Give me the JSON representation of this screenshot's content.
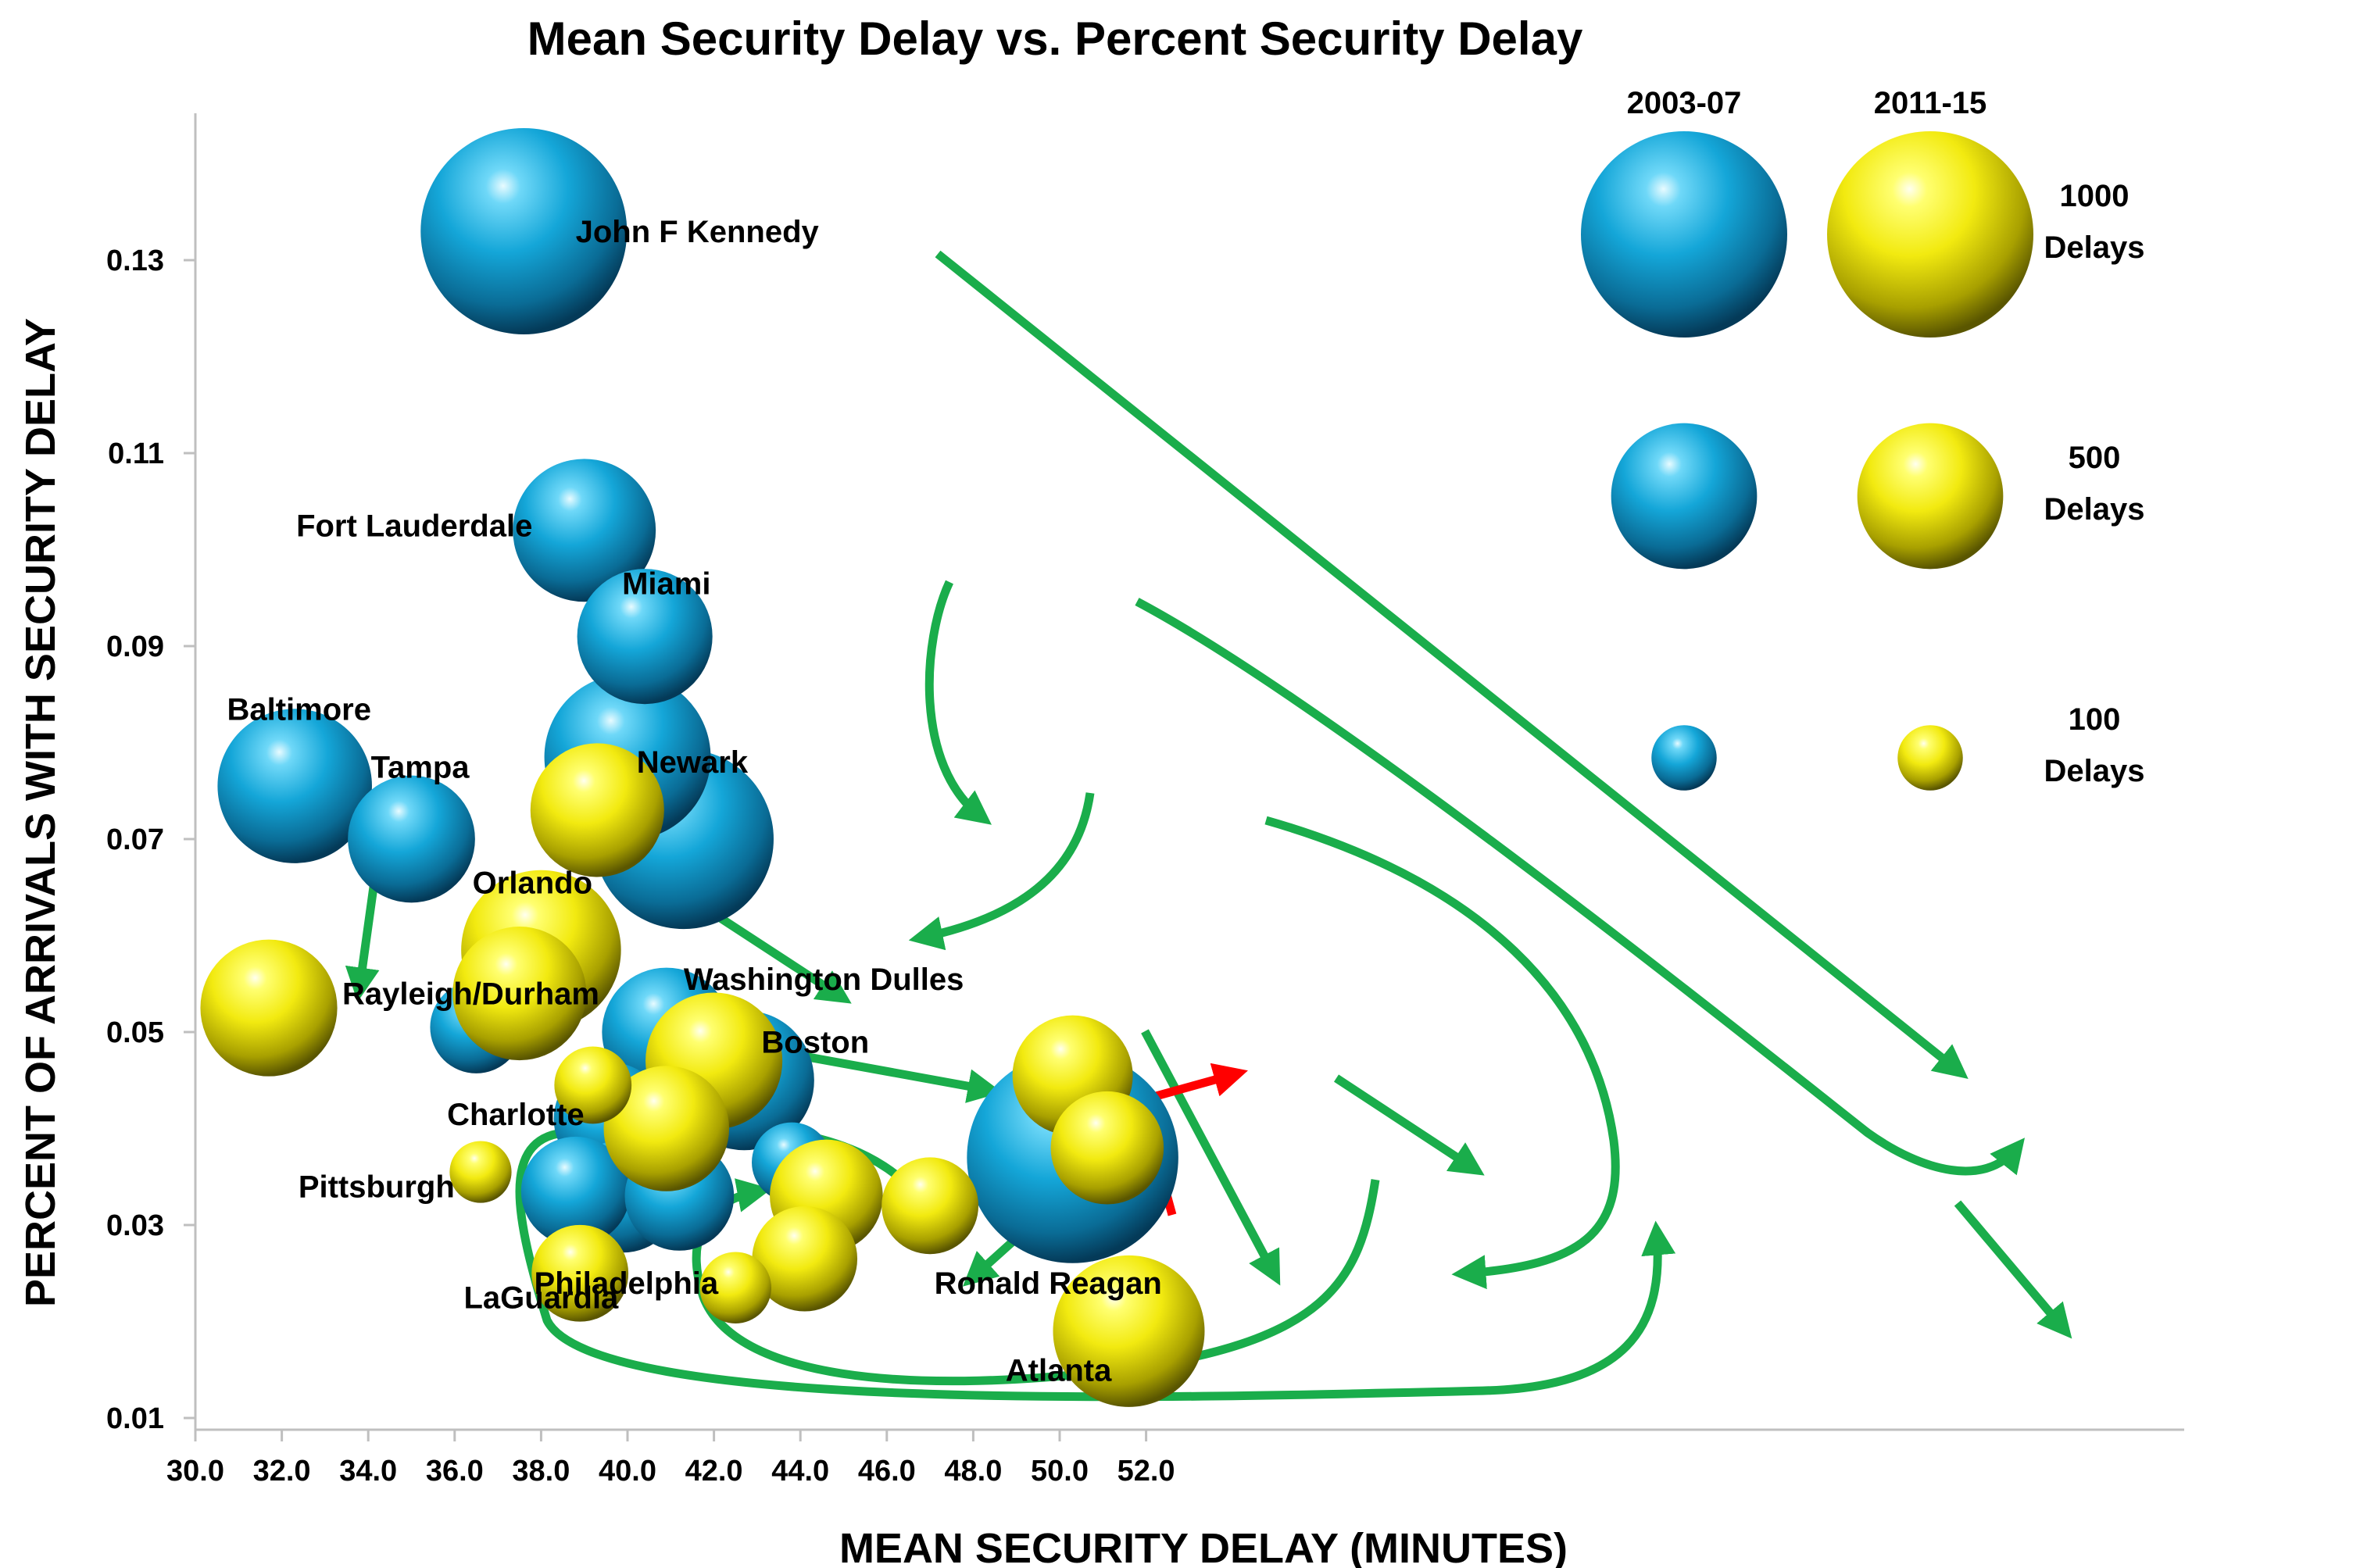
{
  "chart_data": {
    "type": "scatter",
    "subtype": "bubble",
    "title": "Mean Security Delay vs. Percent Security Delay",
    "xlabel": "MEAN SECURITY DELAY (MINUTES)",
    "ylabel": "PERCENT OF ARRIVALS WITH SECURITY DELAY",
    "xlim": [
      30,
      53
    ],
    "ylim": [
      0.01,
      0.145
    ],
    "x_ticks": [
      "30.0",
      "32.0",
      "34.0",
      "36.0",
      "38.0",
      "40.0",
      "42.0",
      "44.0",
      "46.0",
      "48.0",
      "50.0",
      "52.0"
    ],
    "x_tick_values": [
      30,
      32,
      34,
      36,
      38,
      40,
      42,
      44,
      46,
      48,
      50,
      52
    ],
    "y_ticks": [
      "0.01",
      "0.03",
      "0.05",
      "0.07",
      "0.09",
      "0.11",
      "0.13"
    ],
    "y_tick_values": [
      0.01,
      0.03,
      0.05,
      0.07,
      0.09,
      0.11,
      0.13
    ],
    "grid": false,
    "legend_position": "top-right",
    "colors": {
      "period_2003_07": "#1aa8d8",
      "period_2011_15": "#f0e810",
      "arrow": "#1aad4b",
      "arrow_highlight": "#ff0000"
    },
    "series": [
      {
        "name": "2003-07",
        "points": [
          {
            "x": 37.6,
            "y": 0.133,
            "delays": 1000
          },
          {
            "x": 39.0,
            "y": 0.102,
            "delays": 480
          },
          {
            "x": 40.4,
            "y": 0.091,
            "delays": 430
          },
          {
            "x": 32.3,
            "y": 0.0755,
            "delays": 560
          },
          {
            "x": 35.0,
            "y": 0.07,
            "delays": 380
          },
          {
            "x": 40.0,
            "y": 0.0785,
            "delays": 650
          },
          {
            "x": 41.3,
            "y": 0.07,
            "delays": 760
          },
          {
            "x": 36.5,
            "y": 0.0505,
            "delays": 200
          },
          {
            "x": 40.9,
            "y": 0.05,
            "delays": 390
          },
          {
            "x": 42.7,
            "y": 0.045,
            "delays": 460
          },
          {
            "x": 39.6,
            "y": 0.041,
            "delays": 300
          },
          {
            "x": 38.8,
            "y": 0.0335,
            "delays": 280
          },
          {
            "x": 39.9,
            "y": 0.033,
            "delays": 300
          },
          {
            "x": 41.2,
            "y": 0.033,
            "delays": 280
          },
          {
            "x": 43.8,
            "y": 0.0365,
            "delays": 150
          },
          {
            "x": 50.3,
            "y": 0.037,
            "delays": 1050
          }
        ]
      },
      {
        "name": "2011-15",
        "points": [
          {
            "x": 31.7,
            "y": 0.0525,
            "delays": 440
          },
          {
            "x": 39.3,
            "y": 0.073,
            "delays": 420
          },
          {
            "x": 38.0,
            "y": 0.0585,
            "delays": 600
          },
          {
            "x": 37.5,
            "y": 0.054,
            "delays": 420
          },
          {
            "x": 39.2,
            "y": 0.0445,
            "delays": 140
          },
          {
            "x": 42.0,
            "y": 0.047,
            "delays": 440
          },
          {
            "x": 40.9,
            "y": 0.04,
            "delays": 370
          },
          {
            "x": 36.6,
            "y": 0.0355,
            "delays": 90
          },
          {
            "x": 38.9,
            "y": 0.025,
            "delays": 220
          },
          {
            "x": 42.5,
            "y": 0.0235,
            "delays": 120
          },
          {
            "x": 44.6,
            "y": 0.033,
            "delays": 300
          },
          {
            "x": 44.1,
            "y": 0.0265,
            "delays": 260
          },
          {
            "x": 47.0,
            "y": 0.032,
            "delays": 220
          },
          {
            "x": 50.3,
            "y": 0.0455,
            "delays": 340
          },
          {
            "x": 51.1,
            "y": 0.038,
            "delays": 300
          },
          {
            "x": 51.6,
            "y": 0.019,
            "delays": 540
          }
        ]
      }
    ],
    "point_labels": [
      {
        "text": "John F Kennedy",
        "x": 38.8,
        "y": 0.133,
        "anchor": "start"
      },
      {
        "text": "Fort Lauderdale",
        "x": 37.8,
        "y": 0.1025,
        "anchor": "end"
      },
      {
        "text": "Miami",
        "x": 40.9,
        "y": 0.0965,
        "anchor": "middle"
      },
      {
        "text": "Baltimore",
        "x": 32.4,
        "y": 0.0835,
        "anchor": "middle"
      },
      {
        "text": "Tampa",
        "x": 35.2,
        "y": 0.0775,
        "anchor": "middle"
      },
      {
        "text": "Newark",
        "x": 41.5,
        "y": 0.078,
        "anchor": "middle"
      },
      {
        "text": "Orlando",
        "x": 37.8,
        "y": 0.0655,
        "anchor": "middle"
      },
      {
        "text": "Rayleigh/Durham",
        "x": 33.4,
        "y": 0.054,
        "anchor": "start"
      },
      {
        "text": "Washington Dulles",
        "x": 41.3,
        "y": 0.0555,
        "anchor": "start"
      },
      {
        "text": "Boston",
        "x": 43.1,
        "y": 0.049,
        "anchor": "start"
      },
      {
        "text": "Charlotte",
        "x": 39.0,
        "y": 0.0415,
        "anchor": "end"
      },
      {
        "text": "Pittsburgh",
        "x": 36.0,
        "y": 0.034,
        "anchor": "end"
      },
      {
        "text": "LaGuardia",
        "x": 38.0,
        "y": 0.0225,
        "anchor": "middle"
      },
      {
        "text": "Philadelphia",
        "x": 42.1,
        "y": 0.024,
        "anchor": "end"
      },
      {
        "text": "Ronald Reagan",
        "x": 47.1,
        "y": 0.024,
        "anchor": "start"
      },
      {
        "text": "Atlanta",
        "x": 51.2,
        "y": 0.015,
        "anchor": "end"
      }
    ],
    "legend": {
      "headers": [
        "2003-07",
        "2011-15"
      ],
      "sizes": [
        {
          "delays": 1000,
          "label_lines": [
            "1000",
            "Delays"
          ]
        },
        {
          "delays": 500,
          "label_lines": [
            "500",
            "Delays"
          ]
        },
        {
          "delays": 100,
          "label_lines": [
            "100",
            "Delays"
          ]
        }
      ]
    }
  }
}
